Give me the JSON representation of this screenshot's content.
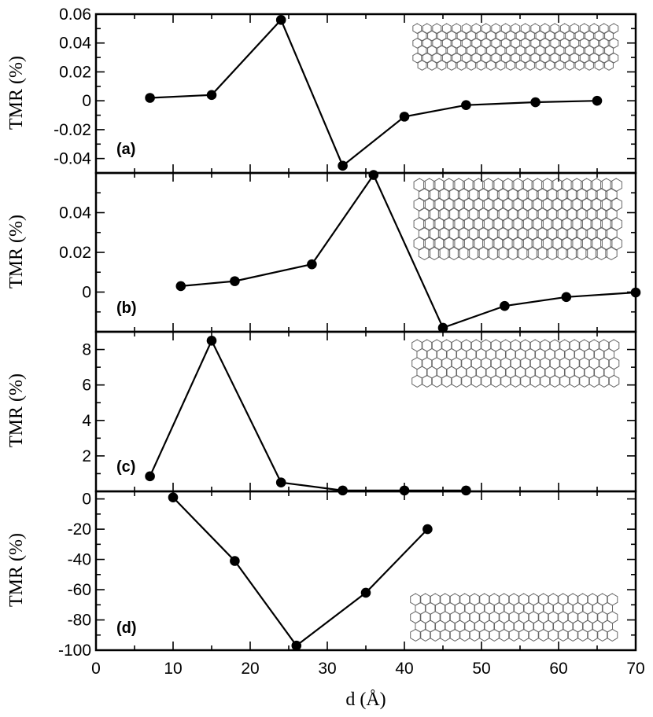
{
  "chart_data": [
    {
      "type": "line",
      "panel": "(a)",
      "ylabel": "TMR (%)",
      "xlim": [
        0,
        70
      ],
      "ylim": [
        -0.05,
        0.06
      ],
      "yticks": [
        -0.04,
        -0.02,
        0,
        0.02,
        0.04,
        0.06
      ],
      "ytick_labels": [
        "-0.04",
        "-0.02",
        "0",
        "0.02",
        "0.04",
        "0.06"
      ],
      "x": [
        7,
        15,
        24,
        32,
        40,
        48,
        57,
        65
      ],
      "values": [
        0.002,
        0.004,
        0.056,
        -0.045,
        -0.011,
        -0.003,
        -0.001,
        0.0
      ],
      "inset": "graphene-ribbon",
      "inset_rows": 6
    },
    {
      "type": "line",
      "panel": "(b)",
      "ylabel": "TMR (%)",
      "xlim": [
        0,
        70
      ],
      "ylim": [
        -0.02,
        0.06
      ],
      "yticks": [
        0,
        0.02,
        0.04
      ],
      "ytick_labels": [
        "0",
        "0.02",
        "0.04"
      ],
      "x": [
        11,
        18,
        28,
        36,
        45,
        53,
        61,
        70
      ],
      "values": [
        0.003,
        0.0055,
        0.014,
        0.059,
        -0.018,
        -0.007,
        -0.0025,
        -0.0002
      ],
      "inset": "graphene-ribbon",
      "inset_rows": 8
    },
    {
      "type": "line",
      "panel": "(c)",
      "ylabel": "TMR (%)",
      "xlim": [
        0,
        70
      ],
      "ylim": [
        0,
        9
      ],
      "yticks": [
        2,
        4,
        6,
        8
      ],
      "ytick_labels": [
        "2",
        "4",
        "6",
        "8"
      ],
      "x": [
        7,
        15,
        24,
        32,
        40,
        48
      ],
      "values": [
        0.85,
        8.5,
        0.5,
        0.05,
        0.05,
        0.05
      ],
      "inset": "graphene-ribbon",
      "inset_rows": 5
    },
    {
      "type": "line",
      "panel": "(d)",
      "ylabel": "TMR (%)",
      "xlabel": "d (Å)",
      "xlim": [
        0,
        70
      ],
      "ylim": [
        -100,
        5
      ],
      "yticks": [
        -100,
        -80,
        -60,
        -40,
        -20,
        0
      ],
      "ytick_labels": [
        "-100",
        "-80",
        "-60",
        "-40",
        "-20",
        "0"
      ],
      "xticks": [
        0,
        10,
        20,
        30,
        40,
        50,
        60,
        70
      ],
      "xtick_labels": [
        "0",
        "10",
        "20",
        "30",
        "40",
        "50",
        "60",
        "70"
      ],
      "x": [
        10,
        18,
        26,
        35,
        43
      ],
      "values": [
        1,
        -41,
        -97,
        -62,
        -20
      ],
      "inset": "graphene-ribbon",
      "inset_rows": 5
    }
  ]
}
